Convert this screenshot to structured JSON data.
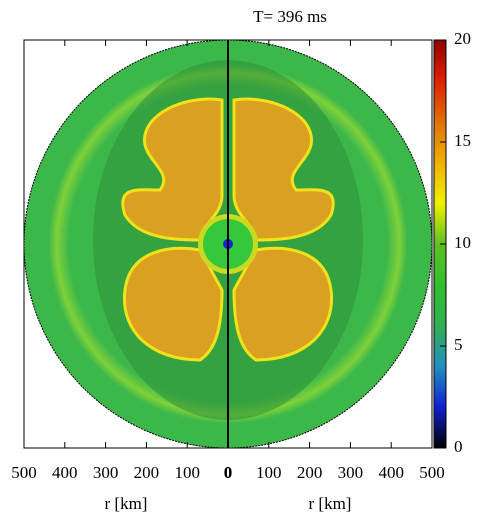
{
  "chart_data": {
    "type": "heatmap",
    "title": "T= 396 ms",
    "panels": [
      {
        "xlabel": "r [km]",
        "xlim": [
          500,
          0
        ],
        "xticks": [
          500,
          400,
          300,
          200,
          100,
          0
        ]
      },
      {
        "xlabel": "r [km]",
        "xlim": [
          0,
          500
        ],
        "xticks": [
          0,
          100,
          200,
          300,
          400,
          500
        ]
      }
    ],
    "colorbar": {
      "lim": [
        0,
        20
      ],
      "ticks": [
        0,
        5,
        10,
        15,
        20
      ],
      "colormap": [
        "#000000",
        "#1020d0",
        "#2090c0",
        "#30b050",
        "#30c030",
        "#60c020",
        "#f0f000",
        "#f0b000",
        "#e07000",
        "#e02000",
        "#900000"
      ]
    }
  }
}
